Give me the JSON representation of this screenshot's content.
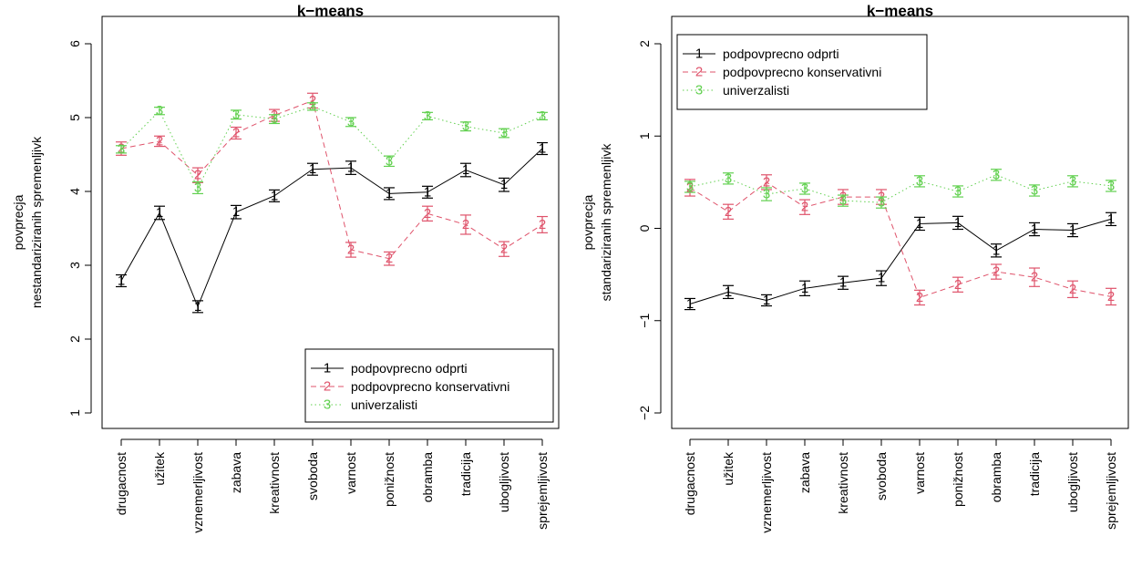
{
  "colors": {
    "series1": "#000000",
    "series2": "#DF536B",
    "series3": "#61D04F"
  },
  "chart_data": [
    {
      "type": "line",
      "title": "k−means",
      "ylabel": [
        "povprecja",
        "nestandariziranih spremenljivk"
      ],
      "xlabel": "",
      "ylim": [
        1,
        6
      ],
      "yticks": [
        1,
        2,
        3,
        4,
        5,
        6
      ],
      "ytick_labels": [
        "1",
        "2",
        "3",
        "4",
        "5",
        "6"
      ],
      "legend_position": "bottom-right",
      "categories": [
        "drugacnost",
        "užitek",
        "vznemerljivost",
        "zabava",
        "kreativnost",
        "svoboda",
        "varnost",
        "ponižnost",
        "obramba",
        "tradicija",
        "ubogljivost",
        "sprejemljivost"
      ],
      "series": [
        {
          "name": "podpovprecno odprti",
          "marker": "1",
          "dash": "none",
          "values": [
            2.79,
            3.71,
            2.44,
            3.72,
            3.94,
            4.3,
            4.32,
            3.97,
            3.99,
            4.29,
            4.09,
            4.58
          ],
          "errors": [
            0.08,
            0.09,
            0.08,
            0.09,
            0.08,
            0.08,
            0.09,
            0.08,
            0.08,
            0.09,
            0.09,
            0.08
          ]
        },
        {
          "name": "podpovprecno konservativni",
          "marker": "2",
          "dash": "dashed",
          "values": [
            4.58,
            4.68,
            4.22,
            4.79,
            5.03,
            5.23,
            3.21,
            3.09,
            3.7,
            3.55,
            3.22,
            3.55
          ],
          "errors": [
            0.09,
            0.07,
            0.1,
            0.08,
            0.08,
            0.1,
            0.1,
            0.09,
            0.1,
            0.13,
            0.1,
            0.11
          ]
        },
        {
          "name": "univerzalisti",
          "marker": "3",
          "dash": "dotted",
          "values": [
            4.57,
            5.09,
            4.05,
            5.04,
            4.98,
            5.15,
            4.94,
            4.41,
            5.02,
            4.88,
            4.79,
            5.02
          ],
          "errors": [
            0.05,
            0.05,
            0.08,
            0.06,
            0.06,
            0.05,
            0.06,
            0.07,
            0.05,
            0.06,
            0.06,
            0.05
          ]
        }
      ]
    },
    {
      "type": "line",
      "title": "k−means",
      "ylabel": [
        "povprecja",
        "standariziranih spremenljivk"
      ],
      "xlabel": "",
      "ylim": [
        -2,
        2
      ],
      "yticks": [
        -2,
        -1,
        0,
        1,
        2
      ],
      "ytick_labels": [
        "−2",
        "−1",
        "0",
        "1",
        "2"
      ],
      "legend_position": "top-left",
      "categories": [
        "drugacnost",
        "užitek",
        "vznemerljivost",
        "zabava",
        "kreativnost",
        "svoboda",
        "varnost",
        "ponižnost",
        "obramba",
        "tradicija",
        "ubogljivost",
        "sprejemljivost"
      ],
      "series": [
        {
          "name": "podpovprecno odprti",
          "marker": "1",
          "dash": "none",
          "values": [
            -0.82,
            -0.69,
            -0.78,
            -0.65,
            -0.59,
            -0.54,
            0.05,
            0.06,
            -0.24,
            -0.01,
            -0.02,
            0.1
          ],
          "errors": [
            0.06,
            0.07,
            0.06,
            0.08,
            0.07,
            0.08,
            0.07,
            0.07,
            0.07,
            0.07,
            0.07,
            0.07
          ]
        },
        {
          "name": "podpovprecno konservativni",
          "marker": "2",
          "dash": "dashed",
          "values": [
            0.44,
            0.18,
            0.5,
            0.23,
            0.34,
            0.34,
            -0.75,
            -0.61,
            -0.47,
            -0.53,
            -0.66,
            -0.74
          ],
          "errors": [
            0.09,
            0.08,
            0.08,
            0.08,
            0.08,
            0.08,
            0.08,
            0.08,
            0.08,
            0.1,
            0.09,
            0.09
          ]
        },
        {
          "name": "univerzalisti",
          "marker": "3",
          "dash": "dotted",
          "values": [
            0.45,
            0.54,
            0.37,
            0.43,
            0.3,
            0.28,
            0.51,
            0.4,
            0.58,
            0.41,
            0.51,
            0.46
          ],
          "errors": [
            0.06,
            0.06,
            0.07,
            0.06,
            0.06,
            0.06,
            0.06,
            0.06,
            0.06,
            0.06,
            0.06,
            0.06
          ]
        }
      ]
    }
  ]
}
